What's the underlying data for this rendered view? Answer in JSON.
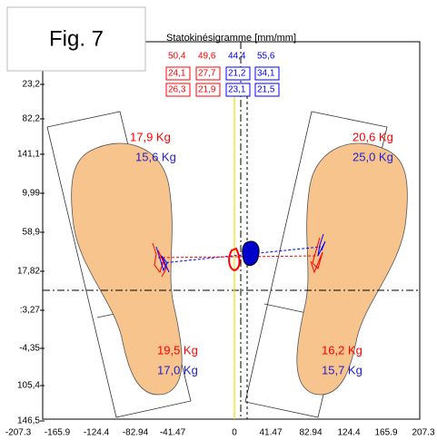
{
  "figure_label": "Fig. 7",
  "title": "Statokinésigramme [mm/mm]",
  "top_values": [
    [
      "50,4",
      "49,6",
      "44,4",
      "55,6"
    ],
    [
      "24,1",
      "27,7",
      "21,2",
      "34,1"
    ],
    [
      "26,3",
      "21,9",
      "23,1",
      "21,5"
    ]
  ],
  "weights": {
    "left_front": [
      "17,9 Kg",
      "15,6 Kg"
    ],
    "right_front": [
      "20,6 Kg",
      "25,0 Kg"
    ],
    "left_rear": [
      "19,5 Kg",
      "17,0 Kg"
    ],
    "right_rear": [
      "16,2 Kg",
      "15,7 Kg"
    ]
  },
  "y_axis_labels": [
    "23,2",
    "82,2",
    "141,1",
    "9,99",
    "58,9",
    "17,82",
    ":3,27",
    "-4,35",
    "105,4",
    "146,5"
  ],
  "x_axis_labels": [
    "-207.3",
    "-165.9",
    "-124.4",
    "-82.94",
    "-41.47",
    "0",
    "41.47",
    "82.94",
    "124.4",
    "165.9",
    "207.3"
  ]
}
